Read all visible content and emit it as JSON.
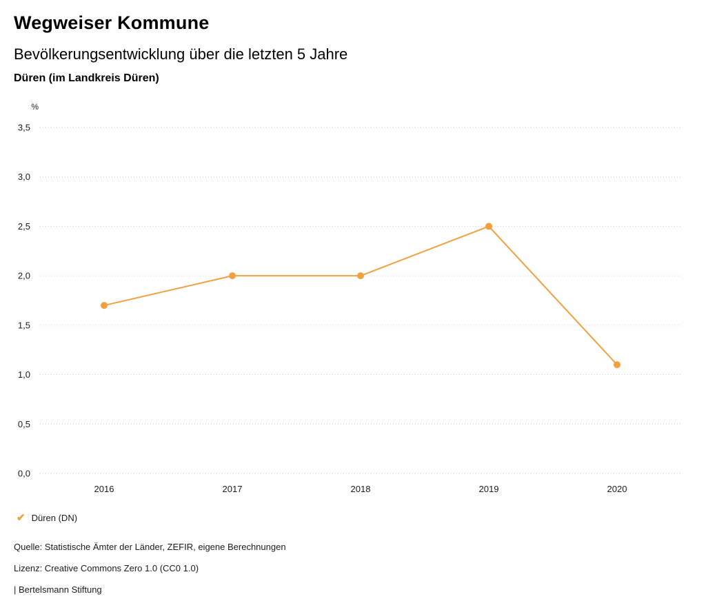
{
  "header": {
    "title": "Wegweiser Kommune",
    "subtitle": "Bevölkerungsentwicklung über die letzten 5 Jahre",
    "region": "Düren (im Landkreis Düren)"
  },
  "chart_data": {
    "type": "line",
    "title": "Bevölkerungsentwicklung über die letzten 5 Jahre",
    "region": "Düren (im Landkreis Düren)",
    "unit_label": "%",
    "categories": [
      "2016",
      "2017",
      "2018",
      "2019",
      "2020"
    ],
    "series": [
      {
        "name": "Düren (DN)",
        "values": [
          1.7,
          2.0,
          2.0,
          2.5,
          1.1
        ],
        "color": "#f0a03d"
      }
    ],
    "ylim": [
      0,
      3.5
    ],
    "ytick_step": 0.5,
    "ytick_labels": [
      "0,0",
      "0,5",
      "1,0",
      "1,5",
      "2,0",
      "2,5",
      "3,0",
      "3,5"
    ],
    "grid": "horizontal-dotted",
    "grid_color": "#c9c9c9",
    "legend_position": "bottom-left"
  },
  "legend": {
    "items": [
      {
        "label": "Düren (DN)",
        "color": "#f0a03d",
        "icon": "check"
      }
    ]
  },
  "footer": {
    "source": "Quelle: Statistische Ämter der Länder, ZEFIR, eigene Berechnungen",
    "license": "Lizenz: Creative Commons Zero 1.0 (CC0 1.0)",
    "attribution": "| Bertelsmann Stiftung"
  }
}
